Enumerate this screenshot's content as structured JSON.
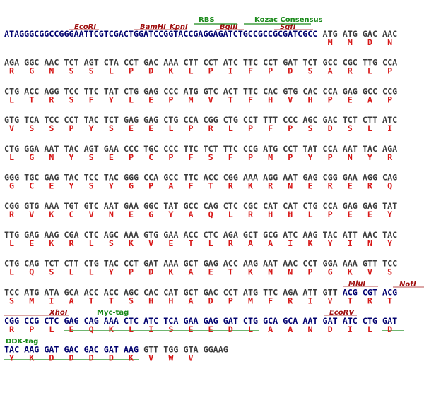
{
  "annotations": {
    "rbs": "RBS",
    "kozak": "Kozac Consensus",
    "ecori": "EcoRI",
    "bamhi": "BamHI",
    "kpni": "KpnI",
    "bglii": "BglII",
    "sgfi": "SgfI",
    "mlui": "MluI",
    "noti": "NotI",
    "xhoi": "XhoI",
    "myc": "Myc-tag",
    "ecorv": "EcoRV",
    "ddk": "DDK-tag"
  },
  "colors": {
    "site": "#00006e",
    "codon": "#3c3c3c",
    "aa": "#d81818",
    "tag": "#1a8a1a",
    "enzyme": "#a01010"
  },
  "rows": [
    {
      "prefix": "ATAGGGCGGCCGGGAATTCGTCGACTGGATCCGGTACCGAGGAGATCTGCCGCCGCGATCGCC",
      "codons": [
        "ATG",
        "ATG",
        "GAC",
        "AAC"
      ],
      "aa": [
        "M",
        "M",
        "D",
        "N"
      ]
    },
    {
      "codons": [
        "AGA",
        "GGC",
        "AAC",
        "TCT",
        "AGT",
        "CTA",
        "CCT",
        "GAC",
        "AAA",
        "CTT",
        "CCT",
        "ATC",
        "TTC",
        "CCT",
        "GAT",
        "TCT",
        "GCC",
        "CGC",
        "TTG",
        "CCA"
      ],
      "aa": [
        "R",
        "G",
        "N",
        "S",
        "S",
        "L",
        "P",
        "D",
        "K",
        "L",
        "P",
        "I",
        "F",
        "P",
        "D",
        "S",
        "A",
        "R",
        "L",
        "P"
      ]
    },
    {
      "codons": [
        "CTG",
        "ACC",
        "AGG",
        "TCC",
        "TTC",
        "TAT",
        "CTG",
        "GAG",
        "CCC",
        "ATG",
        "GTC",
        "ACT",
        "TTC",
        "CAC",
        "GTG",
        "CAC",
        "CCA",
        "GAG",
        "GCC",
        "CCG"
      ],
      "aa": [
        "L",
        "T",
        "R",
        "S",
        "F",
        "Y",
        "L",
        "E",
        "P",
        "M",
        "V",
        "T",
        "F",
        "H",
        "V",
        "H",
        "P",
        "E",
        "A",
        "P"
      ]
    },
    {
      "codons": [
        "GTG",
        "TCA",
        "TCC",
        "CCT",
        "TAC",
        "TCT",
        "GAG",
        "GAG",
        "CTG",
        "CCA",
        "CGG",
        "CTG",
        "CCT",
        "TTT",
        "CCC",
        "AGC",
        "GAC",
        "TCT",
        "CTT",
        "ATC"
      ],
      "aa": [
        "V",
        "S",
        "S",
        "P",
        "Y",
        "S",
        "E",
        "E",
        "L",
        "P",
        "R",
        "L",
        "P",
        "F",
        "P",
        "S",
        "D",
        "S",
        "L",
        "I"
      ]
    },
    {
      "codons": [
        "CTG",
        "GGA",
        "AAT",
        "TAC",
        "AGT",
        "GAA",
        "CCC",
        "TGC",
        "CCC",
        "TTC",
        "TCT",
        "TTC",
        "CCG",
        "ATG",
        "CCT",
        "TAT",
        "CCA",
        "AAT",
        "TAC",
        "AGA"
      ],
      "aa": [
        "L",
        "G",
        "N",
        "Y",
        "S",
        "E",
        "P",
        "C",
        "P",
        "F",
        "S",
        "F",
        "P",
        "M",
        "P",
        "Y",
        "P",
        "N",
        "Y",
        "R"
      ]
    },
    {
      "codons": [
        "GGG",
        "TGC",
        "GAG",
        "TAC",
        "TCC",
        "TAC",
        "GGG",
        "CCA",
        "GCC",
        "TTC",
        "ACC",
        "CGG",
        "AAA",
        "AGG",
        "AAT",
        "GAG",
        "CGG",
        "GAA",
        "AGG",
        "CAG"
      ],
      "aa": [
        "G",
        "C",
        "E",
        "Y",
        "S",
        "Y",
        "G",
        "P",
        "A",
        "F",
        "T",
        "R",
        "K",
        "R",
        "N",
        "E",
        "R",
        "E",
        "R",
        "Q"
      ]
    },
    {
      "codons": [
        "CGG",
        "GTG",
        "AAA",
        "TGT",
        "GTC",
        "AAT",
        "GAA",
        "GGC",
        "TAT",
        "GCC",
        "CAG",
        "CTC",
        "CGC",
        "CAT",
        "CAT",
        "CTG",
        "CCA",
        "GAG",
        "GAG",
        "TAT"
      ],
      "aa": [
        "R",
        "V",
        "K",
        "C",
        "V",
        "N",
        "E",
        "G",
        "Y",
        "A",
        "Q",
        "L",
        "R",
        "H",
        "H",
        "L",
        "P",
        "E",
        "E",
        "Y"
      ]
    },
    {
      "codons": [
        "TTG",
        "GAG",
        "AAG",
        "CGA",
        "CTC",
        "AGC",
        "AAA",
        "GTG",
        "GAA",
        "ACC",
        "CTC",
        "AGA",
        "GCT",
        "GCG",
        "ATC",
        "AAG",
        "TAC",
        "ATT",
        "AAC",
        "TAC"
      ],
      "aa": [
        "L",
        "E",
        "K",
        "R",
        "L",
        "S",
        "K",
        "V",
        "E",
        "T",
        "L",
        "R",
        "A",
        "A",
        "I",
        "K",
        "Y",
        "I",
        "N",
        "Y"
      ]
    },
    {
      "codons": [
        "CTG",
        "CAG",
        "TCT",
        "CTT",
        "CTG",
        "TAC",
        "CCT",
        "GAT",
        "AAA",
        "GCT",
        "GAG",
        "ACC",
        "AAG",
        "AAT",
        "AAC",
        "CCT",
        "GGA",
        "AAA",
        "GTT",
        "TCC"
      ],
      "aa": [
        "L",
        "Q",
        "S",
        "L",
        "L",
        "Y",
        "P",
        "D",
        "K",
        "A",
        "E",
        "T",
        "K",
        "N",
        "N",
        "P",
        "G",
        "K",
        "V",
        "S"
      ]
    },
    {
      "codons": [
        "TCC",
        "ATG",
        "ATA",
        "GCA",
        "ACC",
        "ACC",
        "AGC",
        "CAC",
        "CAT",
        "GCT",
        "GAC",
        "CCT",
        "ATG",
        "TTC",
        "AGA",
        "ATT",
        "GTT",
        "ACG",
        "CGT",
        "ACG"
      ],
      "aa": [
        "S",
        "M",
        "I",
        "A",
        "T",
        "T",
        "S",
        "H",
        "H",
        "A",
        "D",
        "P",
        "M",
        "F",
        "R",
        "I",
        "V",
        "T",
        "R",
        "T"
      ],
      "site_codons": [
        17,
        18,
        19
      ]
    },
    {
      "codons": [
        "CGG",
        "CCG",
        "CTC",
        "GAG",
        "CAG",
        "AAA",
        "CTC",
        "ATC",
        "TCA",
        "GAA",
        "GAG",
        "GAT",
        "CTG",
        "GCA",
        "GCA",
        "AAT",
        "GAT",
        "ATC",
        "CTG",
        "GAT"
      ],
      "aa": [
        "R",
        "P",
        "L",
        "E",
        "Q",
        "K",
        "L",
        "I",
        "S",
        "E",
        "E",
        "D",
        "L",
        "A",
        "A",
        "N",
        "D",
        "I",
        "L",
        "D"
      ],
      "site_codons": [
        0,
        1,
        2,
        3,
        4,
        5,
        6,
        7,
        8,
        9,
        10,
        11,
        12,
        13,
        14,
        15,
        16,
        17,
        18,
        19
      ]
    },
    {
      "codons": [
        "TAC",
        "AAG",
        "GAT",
        "GAC",
        "GAC",
        "GAT",
        "AAG",
        "GTT",
        "TGG",
        "GTA",
        "GGAAG"
      ],
      "aa": [
        "Y",
        "K",
        "D",
        "D",
        "D",
        "D",
        "K",
        "V",
        "W",
        "V"
      ],
      "site_codons": [
        0,
        1,
        2,
        3,
        4,
        5,
        6
      ]
    }
  ]
}
